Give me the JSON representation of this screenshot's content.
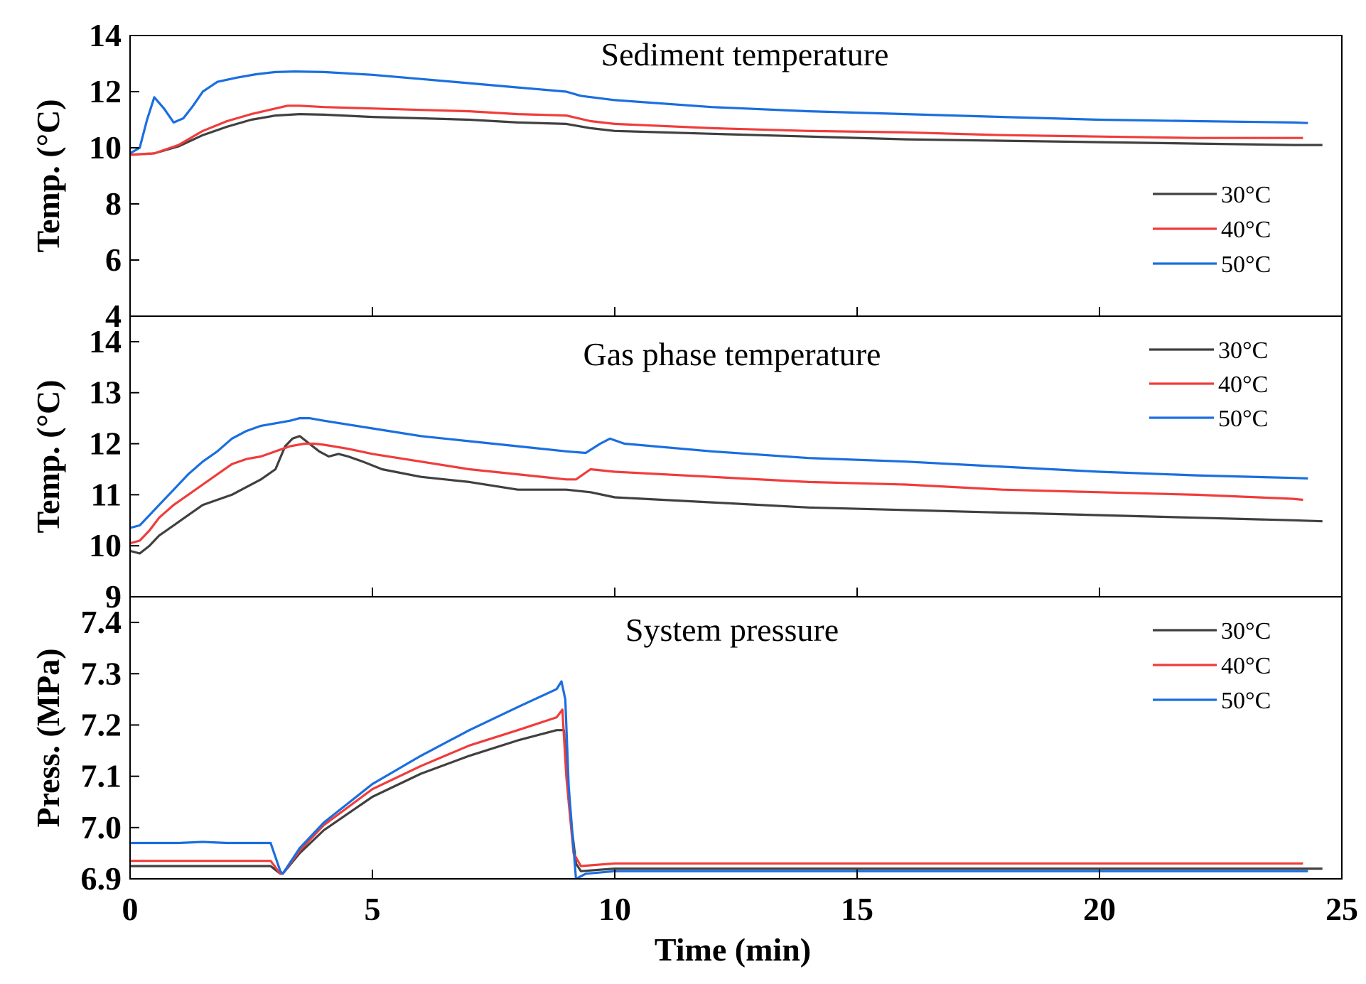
{
  "chart_data": {
    "type": "line",
    "shared_x_axis": {
      "label": "Time (min)",
      "range": [
        0,
        25
      ],
      "ticks": [
        0,
        5,
        10,
        15,
        20,
        25
      ]
    },
    "panels": [
      {
        "id": "sediment",
        "title": "Sediment temperature",
        "ylabel": "Temp. (°C)",
        "ylim": [
          4,
          14
        ],
        "yticks": [
          4,
          6,
          8,
          10,
          12,
          14
        ],
        "legend": "right",
        "series": [
          {
            "name": "30°C",
            "color": "#404040",
            "x": [
              0,
              0.5,
              1,
              1.5,
              2,
              2.5,
              3,
              3.5,
              4,
              5,
              6,
              7,
              8,
              9,
              9.5,
              10,
              12,
              14,
              16,
              18,
              20,
              22,
              24,
              24.6
            ],
            "y": [
              9.75,
              9.8,
              10.05,
              10.45,
              10.75,
              11.0,
              11.15,
              11.2,
              11.18,
              11.1,
              11.05,
              11.0,
              10.9,
              10.85,
              10.7,
              10.6,
              10.5,
              10.4,
              10.3,
              10.25,
              10.2,
              10.15,
              10.1,
              10.1
            ]
          },
          {
            "name": "40°C",
            "color": "#f03c3c",
            "x": [
              0,
              0.5,
              1,
              1.5,
              2,
              2.5,
              3,
              3.25,
              3.5,
              4,
              5,
              6,
              7,
              8,
              9,
              9.5,
              10,
              12,
              14,
              16,
              18,
              20,
              22,
              24,
              24.2
            ],
            "y": [
              9.75,
              9.8,
              10.1,
              10.6,
              10.95,
              11.2,
              11.4,
              11.5,
              11.5,
              11.45,
              11.4,
              11.35,
              11.3,
              11.2,
              11.15,
              10.95,
              10.85,
              10.7,
              10.6,
              10.55,
              10.45,
              10.4,
              10.35,
              10.35,
              10.35
            ]
          },
          {
            "name": "50°C",
            "color": "#1a6ee0",
            "x": [
              0,
              0.2,
              0.35,
              0.5,
              0.7,
              0.9,
              1.1,
              1.3,
              1.5,
              1.8,
              2.2,
              2.6,
              3.0,
              3.4,
              4,
              5,
              6,
              7,
              8,
              9,
              9.3,
              10,
              12,
              14,
              16,
              18,
              20,
              22,
              24,
              24.3
            ],
            "y": [
              9.8,
              10.0,
              11.0,
              11.8,
              11.4,
              10.9,
              11.05,
              11.5,
              12.0,
              12.35,
              12.5,
              12.62,
              12.7,
              12.72,
              12.7,
              12.6,
              12.45,
              12.3,
              12.15,
              12.0,
              11.85,
              11.7,
              11.45,
              11.3,
              11.2,
              11.1,
              11.0,
              10.95,
              10.9,
              10.88
            ]
          }
        ]
      },
      {
        "id": "gas",
        "title": "Gas phase temperature",
        "ylabel": "Temp. (°C)",
        "ylim": [
          9,
          14.5
        ],
        "yticks": [
          9,
          10,
          11,
          12,
          13,
          14
        ],
        "legend": "top-right",
        "series": [
          {
            "name": "30°C",
            "color": "#404040",
            "x": [
              0,
              0.2,
              0.4,
              0.6,
              0.9,
              1.2,
              1.5,
              1.8,
              2.1,
              2.4,
              2.7,
              3.0,
              3.2,
              3.35,
              3.5,
              3.7,
              3.9,
              4.1,
              4.3,
              4.5,
              4.8,
              5.2,
              6,
              7,
              8,
              9,
              9.5,
              10,
              12,
              14,
              16,
              18,
              20,
              22,
              24,
              24.6
            ],
            "y": [
              9.9,
              9.85,
              10.0,
              10.2,
              10.4,
              10.6,
              10.8,
              10.9,
              11.0,
              11.15,
              11.3,
              11.5,
              11.95,
              12.1,
              12.15,
              12.0,
              11.85,
              11.75,
              11.8,
              11.75,
              11.65,
              11.5,
              11.35,
              11.25,
              11.1,
              11.1,
              11.05,
              10.95,
              10.85,
              10.75,
              10.7,
              10.65,
              10.6,
              10.55,
              10.5,
              10.48
            ]
          },
          {
            "name": "40°C",
            "color": "#f03c3c",
            "x": [
              0,
              0.2,
              0.4,
              0.6,
              0.9,
              1.2,
              1.5,
              1.8,
              2.1,
              2.4,
              2.7,
              3.0,
              3.3,
              3.6,
              3.8,
              4,
              4.5,
              5,
              6,
              7,
              8,
              9,
              9.2,
              9.5,
              10,
              12,
              14,
              16,
              18,
              20,
              22,
              24,
              24.2
            ],
            "y": [
              10.05,
              10.1,
              10.3,
              10.55,
              10.8,
              11.0,
              11.2,
              11.4,
              11.6,
              11.7,
              11.75,
              11.85,
              11.95,
              12.0,
              12.0,
              11.98,
              11.9,
              11.8,
              11.65,
              11.5,
              11.4,
              11.3,
              11.3,
              11.5,
              11.45,
              11.35,
              11.25,
              11.2,
              11.1,
              11.05,
              11.0,
              10.92,
              10.9
            ]
          },
          {
            "name": "50°C",
            "color": "#1a6ee0",
            "x": [
              0,
              0.2,
              0.4,
              0.6,
              0.9,
              1.2,
              1.5,
              1.8,
              2.1,
              2.4,
              2.7,
              3.0,
              3.3,
              3.5,
              3.7,
              4,
              5,
              6,
              7,
              8,
              9,
              9.4,
              9.7,
              9.9,
              10.2,
              12,
              14,
              16,
              18,
              20,
              22,
              24,
              24.3
            ],
            "y": [
              10.35,
              10.4,
              10.6,
              10.8,
              11.1,
              11.4,
              11.65,
              11.85,
              12.1,
              12.25,
              12.35,
              12.4,
              12.45,
              12.5,
              12.5,
              12.45,
              12.3,
              12.15,
              12.05,
              11.95,
              11.85,
              11.82,
              12.0,
              12.1,
              12.0,
              11.85,
              11.72,
              11.65,
              11.55,
              11.45,
              11.38,
              11.33,
              11.32
            ]
          }
        ]
      },
      {
        "id": "pressure",
        "title": "System pressure",
        "ylabel": "Press. (MPa)",
        "ylim": [
          6.9,
          7.45
        ],
        "yticks": [
          6.9,
          7.0,
          7.1,
          7.2,
          7.3,
          7.4
        ],
        "legend": "top-right",
        "series": [
          {
            "name": "30°C",
            "color": "#404040",
            "x": [
              0,
              1,
              2,
              2.9,
              3.1,
              3.15,
              3.5,
              4,
              5,
              6,
              7,
              8,
              8.8,
              8.95,
              9.05,
              9.2,
              9.3,
              10,
              12,
              15,
              18,
              20,
              22,
              24,
              24.6
            ],
            "y": [
              6.925,
              6.925,
              6.925,
              6.925,
              6.91,
              6.91,
              6.95,
              6.995,
              7.06,
              7.105,
              7.14,
              7.17,
              7.19,
              7.19,
              7.05,
              6.93,
              6.915,
              6.92,
              6.92,
              6.92,
              6.92,
              6.92,
              6.92,
              6.92,
              6.92
            ]
          },
          {
            "name": "40°C",
            "color": "#f03c3c",
            "x": [
              0,
              1,
              2,
              2.9,
              3.1,
              3.15,
              3.5,
              4,
              5,
              6,
              7,
              8,
              8.8,
              8.92,
              9.0,
              9.15,
              9.3,
              10,
              12,
              15,
              18,
              20,
              22,
              24,
              24.2
            ],
            "y": [
              6.935,
              6.935,
              6.935,
              6.935,
              6.91,
              6.91,
              6.955,
              7.005,
              7.075,
              7.12,
              7.16,
              7.19,
              7.215,
              7.23,
              7.1,
              6.95,
              6.925,
              6.93,
              6.93,
              6.93,
              6.93,
              6.93,
              6.93,
              6.93,
              6.93
            ]
          },
          {
            "name": "50°C",
            "color": "#1a6ee0",
            "x": [
              0,
              1,
              1.5,
              2,
              2.9,
              3.1,
              3.15,
              3.5,
              4,
              5,
              6,
              7,
              8,
              8.8,
              8.9,
              8.98,
              9.05,
              9.2,
              9.4,
              10,
              12,
              15,
              18,
              20,
              22,
              24,
              24.3
            ],
            "y": [
              6.97,
              6.97,
              6.972,
              6.97,
              6.97,
              6.915,
              6.91,
              6.96,
              7.01,
              7.085,
              7.14,
              7.19,
              7.235,
              7.27,
              7.285,
              7.25,
              7.08,
              6.9,
              6.91,
              6.915,
              6.915,
              6.915,
              6.915,
              6.915,
              6.915,
              6.915,
              6.915
            ]
          }
        ]
      }
    ]
  }
}
